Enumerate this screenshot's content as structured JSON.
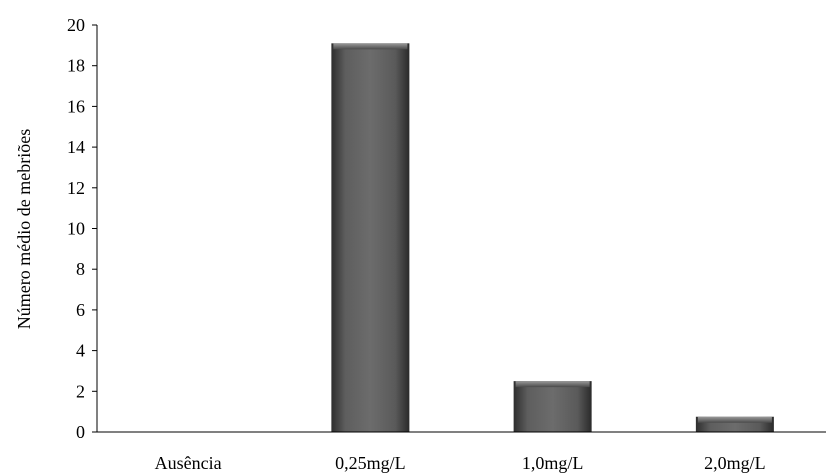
{
  "chart_data": {
    "type": "bar",
    "title": "",
    "xlabel": "",
    "ylabel": "Número médio de mebriões",
    "categories": [
      "Ausência",
      "0,25mg/L",
      "1,0mg/L",
      "2,0mg/L"
    ],
    "values": [
      0,
      19.1,
      2.5,
      0.75
    ],
    "ylim": [
      0,
      20
    ],
    "yticks": [
      "0",
      "2",
      "4",
      "6",
      "8",
      "10",
      "12",
      "14",
      "16",
      "18",
      "20"
    ],
    "grid": false,
    "legend": "none",
    "colors": {
      "bar_dark": "#3f3f3f",
      "bar_mid": "#5a5a5a",
      "bar_light": "#8a8a8a",
      "axis": "#000000"
    }
  }
}
